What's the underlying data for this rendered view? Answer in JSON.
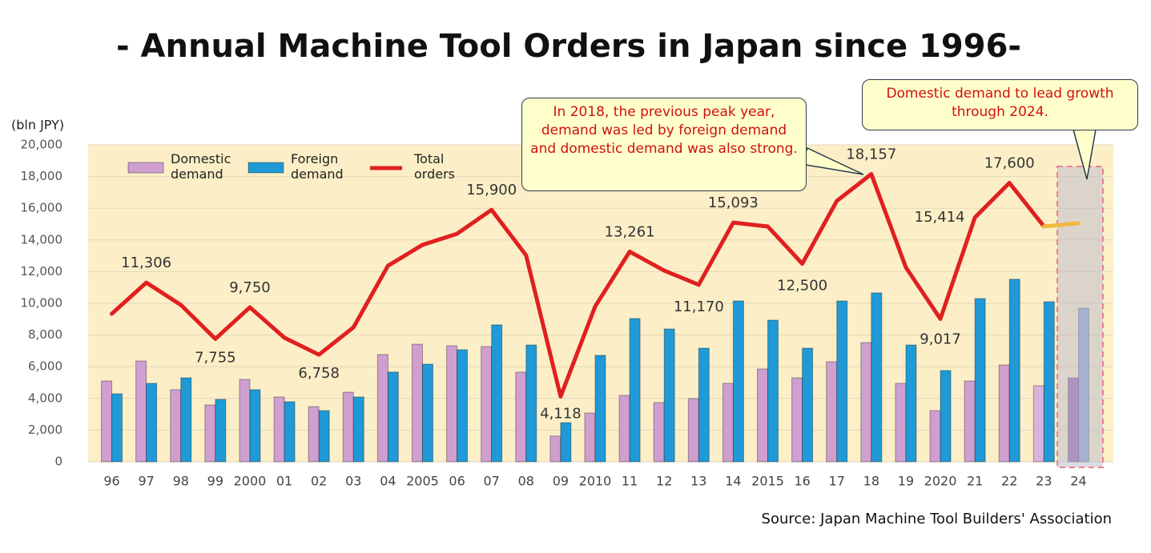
{
  "chart_data": {
    "type": "bar",
    "title": "- Annual Machine Tool Orders in Japan since 1996-",
    "y_label": "(bln JPY)",
    "source": "Source: Japan Machine Tool Builders' Association",
    "categories": [
      "96",
      "97",
      "98",
      "99",
      "2000",
      "01",
      "02",
      "03",
      "04",
      "2005",
      "06",
      "07",
      "08",
      "09",
      "2010",
      "11",
      "12",
      "13",
      "14",
      "2015",
      "16",
      "17",
      "18",
      "19",
      "2020",
      "21",
      "22",
      "23",
      "24"
    ],
    "series": [
      {
        "name": "Domestic demand",
        "type": "bar",
        "color": "#cf9fd0",
        "color_overrides": {
          "27": "#d9b3da",
          "28": "#9b5fae"
        },
        "values": [
          5100,
          6360,
          4550,
          3590,
          5200,
          4090,
          3480,
          4390,
          6770,
          7420,
          7320,
          7270,
          5660,
          1620,
          3080,
          4190,
          3740,
          3990,
          4950,
          5860,
          5300,
          6310,
          7520,
          4950,
          3230,
          5100,
          6110,
          4800,
          5300
        ]
      },
      {
        "name": "Foreign demand",
        "type": "bar",
        "color": "#1f9ad6",
        "color_overrides": {
          "28": "#8a9fd8"
        },
        "values": [
          4290,
          4950,
          5300,
          3940,
          4550,
          3790,
          3230,
          4090,
          5660,
          6160,
          7070,
          8640,
          7370,
          2470,
          6720,
          9040,
          8380,
          7170,
          10150,
          8940,
          7170,
          10150,
          10660,
          7370,
          5760,
          10300,
          11520,
          10100,
          9700
        ]
      },
      {
        "name": "Total orders",
        "type": "line",
        "color": "#e02020",
        "values": [
          9340,
          11306,
          9900,
          7755,
          9750,
          7830,
          6758,
          8480,
          12370,
          13690,
          14390,
          15900,
          13030,
          4118,
          9800,
          13261,
          12070,
          11170,
          15093,
          14850,
          12500,
          16460,
          18157,
          12270,
          9017,
          15414,
          17600,
          14850,
          null
        ],
        "value_labels": [
          null,
          "11,306",
          null,
          "7,755",
          "9,750",
          null,
          "6,758",
          null,
          null,
          null,
          null,
          "15,900",
          null,
          "4,118",
          null,
          "13,261",
          null,
          "11,170",
          "15,093",
          null,
          "12,500",
          null,
          "18,157",
          null,
          "9,017",
          "15,414",
          "17,600",
          null,
          null
        ]
      },
      {
        "type": "line",
        "color": "#f0b840",
        "values": [
          null,
          null,
          null,
          null,
          null,
          null,
          null,
          null,
          null,
          null,
          null,
          null,
          null,
          null,
          null,
          null,
          null,
          null,
          null,
          null,
          null,
          null,
          null,
          null,
          null,
          null,
          null,
          14850,
          15050
        ]
      }
    ],
    "ylim": [
      0,
      20000
    ],
    "yticks": [
      0,
      {
        "value": 2000,
        "label": "2,000"
      },
      {
        "value": 4000,
        "label": "4,000"
      },
      {
        "value": 6000,
        "label": "6,000"
      },
      {
        "value": 8000,
        "label": "8,000"
      },
      {
        "value": 10000,
        "label": "10,000"
      },
      {
        "value": 12000,
        "label": "12,000"
      },
      {
        "value": 14000,
        "label": "14,000"
      },
      {
        "value": 16000,
        "label": "16,000"
      },
      {
        "value": 18000,
        "label": "18,000"
      },
      {
        "value": 20000,
        "label": "20,000"
      }
    ],
    "grid": true,
    "annotations": [
      "In 2018, the previous peak year, demand was led by foreign demand and domestic demand was also strong.",
      "Domestic demand to lead growth through 2024."
    ]
  }
}
